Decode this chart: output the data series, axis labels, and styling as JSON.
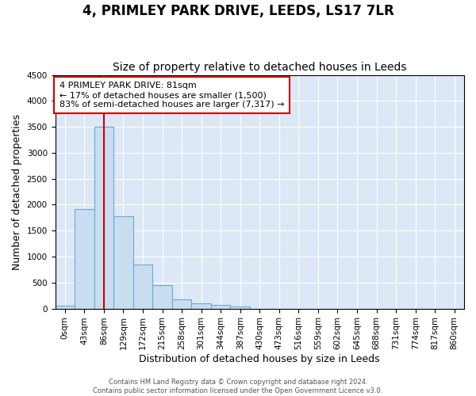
{
  "title": "4, PRIMLEY PARK DRIVE, LEEDS, LS17 7LR",
  "subtitle": "Size of property relative to detached houses in Leeds",
  "xlabel": "Distribution of detached houses by size in Leeds",
  "ylabel": "Number of detached properties",
  "bin_labels": [
    "0sqm",
    "43sqm",
    "86sqm",
    "129sqm",
    "172sqm",
    "215sqm",
    "258sqm",
    "301sqm",
    "344sqm",
    "387sqm",
    "430sqm",
    "473sqm",
    "516sqm",
    "559sqm",
    "602sqm",
    "645sqm",
    "688sqm",
    "731sqm",
    "774sqm",
    "817sqm",
    "860sqm"
  ],
  "bar_heights": [
    50,
    1920,
    3500,
    1780,
    850,
    450,
    175,
    100,
    70,
    40,
    0,
    0,
    0,
    0,
    0,
    0,
    0,
    0,
    0,
    0,
    0
  ],
  "bar_color": "#c8ddf0",
  "bar_edge_color": "#6aaad4",
  "annotation_text": "4 PRIMLEY PARK DRIVE: 81sqm\n← 17% of detached houses are smaller (1,500)\n83% of semi-detached houses are larger (7,317) →",
  "vline_x": 2.0,
  "vline_color": "#cc0000",
  "annotation_box_color": "#ffffff",
  "annotation_box_edge": "#cc0000",
  "ylim": [
    0,
    4500
  ],
  "fig_bg_color": "#ffffff",
  "plot_bg_color": "#dce8f5",
  "grid_color": "#ffffff",
  "footer_text": "Contains HM Land Registry data © Crown copyright and database right 2024.\nContains public sector information licensed under the Open Government Licence v3.0.",
  "title_fontsize": 12,
  "subtitle_fontsize": 10,
  "xlabel_fontsize": 9,
  "ylabel_fontsize": 9,
  "tick_fontsize": 7.5,
  "annot_fontsize": 8
}
